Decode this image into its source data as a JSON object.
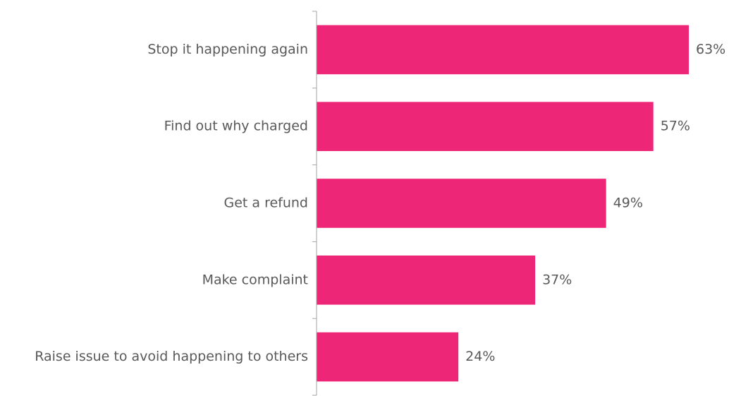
{
  "chart_data": {
    "type": "bar",
    "orientation": "horizontal",
    "categories": [
      "Stop it happening again",
      "Find out why charged",
      "Get a refund",
      "Make complaint",
      "Raise issue to avoid happening to others"
    ],
    "values": [
      63,
      57,
      49,
      37,
      24
    ],
    "value_labels": [
      "63%",
      "57%",
      "49%",
      "37%",
      "24%"
    ],
    "unit": "%",
    "title": "",
    "xlabel": "",
    "ylabel": "",
    "xlim": [
      0,
      70
    ],
    "grid": false,
    "legend": "none",
    "bar_color": "#EE2677",
    "axis_color": "#A6A6A6",
    "text_color": "#595959"
  }
}
